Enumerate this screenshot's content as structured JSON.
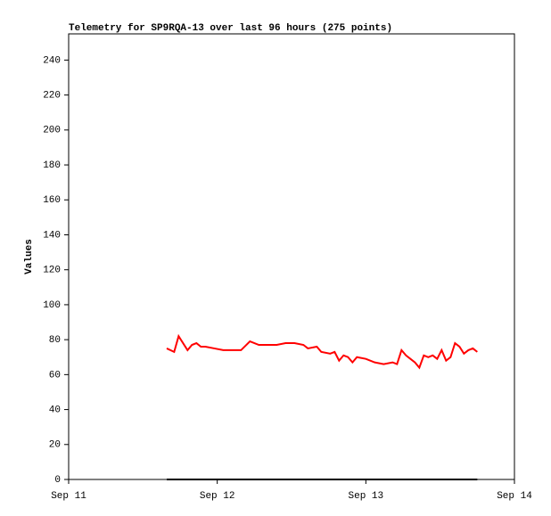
{
  "chart_data": {
    "type": "line",
    "title": "Telemetry for SP9RQA-13 over last 96 hours (275 points)",
    "y_label": "Values",
    "x": [
      0.66,
      0.71,
      0.74,
      0.77,
      0.8,
      0.83,
      0.86,
      0.89,
      0.92,
      0.98,
      1.04,
      1.1,
      1.16,
      1.22,
      1.28,
      1.34,
      1.4,
      1.46,
      1.52,
      1.58,
      1.61,
      1.67,
      1.7,
      1.76,
      1.79,
      1.82,
      1.85,
      1.88,
      1.91,
      1.94,
      2.0,
      2.06,
      2.12,
      2.18,
      2.21,
      2.24,
      2.27,
      2.3,
      2.33,
      2.36,
      2.39,
      2.42,
      2.45,
      2.48,
      2.51,
      2.54,
      2.57,
      2.6,
      2.63,
      2.66,
      2.69,
      2.72,
      2.75
    ],
    "series": [
      {
        "color": "#ff0000",
        "values": [
          75,
          73,
          82,
          78,
          74,
          77,
          78,
          76,
          76,
          75,
          74,
          74,
          74,
          79,
          77,
          77,
          77,
          78,
          78,
          77,
          75,
          76,
          73,
          72,
          73,
          68,
          71,
          70,
          67,
          70,
          69,
          67,
          66,
          67,
          66,
          74,
          71,
          69,
          67,
          64,
          71,
          70,
          71,
          69,
          74,
          68,
          70,
          78,
          76,
          72,
          74,
          75,
          73
        ]
      },
      {
        "color": "#000000",
        "values": [
          0,
          0,
          0,
          0,
          0,
          0,
          0,
          0,
          0,
          0,
          0,
          0,
          0,
          0,
          0,
          0,
          0,
          0,
          0,
          0,
          0,
          0,
          0,
          0,
          0,
          0,
          0,
          0,
          0,
          0,
          0,
          0,
          0,
          0,
          0,
          0,
          0,
          0,
          0,
          0,
          0,
          0,
          0,
          0,
          0,
          0,
          0,
          0,
          0,
          0,
          0,
          0,
          0
        ]
      }
    ],
    "xlim": [
      0,
      3
    ],
    "xticks": [
      {
        "value": 0,
        "label": "Sep 11"
      },
      {
        "value": 1,
        "label": "Sep 12"
      },
      {
        "value": 2,
        "label": "Sep 13"
      },
      {
        "value": 3,
        "label": "Sep 14"
      }
    ],
    "ylim": [
      0,
      255
    ],
    "yticks": [
      0,
      20,
      40,
      60,
      80,
      100,
      120,
      140,
      160,
      180,
      200,
      220,
      240
    ],
    "grid": false
  }
}
